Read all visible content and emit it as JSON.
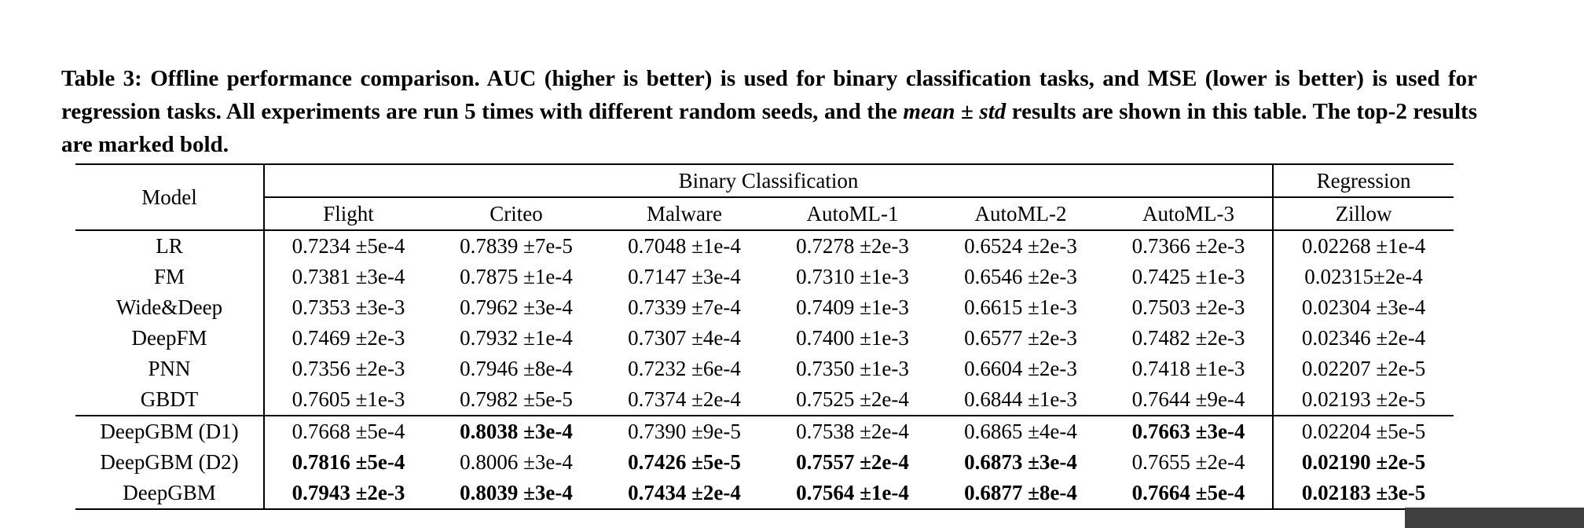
{
  "caption": {
    "prefix": "Table 3: Offline performance comparison. AUC (higher is better) is used for binary classification tasks, and MSE (lower is better) is used for regression tasks. All experiments are run 5 times with different random seeds, and the ",
    "emphasis": "mean ± std",
    "suffix": " results are shown in this table. The top-2 results are marked bold."
  },
  "table": {
    "model_header": "Model",
    "groups": {
      "binary": "Binary Classification",
      "regression": "Regression"
    },
    "columns": [
      "Flight",
      "Criteo",
      "Malware",
      "AutoML-1",
      "AutoML-2",
      "AutoML-3",
      "Zillow"
    ],
    "rows": [
      {
        "model": "LR",
        "values": [
          "0.7234 ±5e-4",
          "0.7839 ±7e-5",
          "0.7048 ±1e-4",
          "0.7278 ±2e-3",
          "0.6524 ±2e-3",
          "0.7366 ±2e-3",
          "0.02268 ±1e-4"
        ],
        "bold": [
          false,
          false,
          false,
          false,
          false,
          false,
          false
        ],
        "section_end": false
      },
      {
        "model": "FM",
        "values": [
          "0.7381 ±3e-4",
          "0.7875 ±1e-4",
          "0.7147 ±3e-4",
          "0.7310 ±1e-3",
          "0.6546 ±2e-3",
          "0.7425 ±1e-3",
          "0.02315±2e-4"
        ],
        "bold": [
          false,
          false,
          false,
          false,
          false,
          false,
          false
        ],
        "section_end": false
      },
      {
        "model": "Wide&Deep",
        "values": [
          "0.7353 ±3e-3",
          "0.7962 ±3e-4",
          "0.7339 ±7e-4",
          "0.7409 ±1e-3",
          "0.6615 ±1e-3",
          "0.7503 ±2e-3",
          "0.02304 ±3e-4"
        ],
        "bold": [
          false,
          false,
          false,
          false,
          false,
          false,
          false
        ],
        "section_end": false
      },
      {
        "model": "DeepFM",
        "values": [
          "0.7469 ±2e-3",
          "0.7932 ±1e-4",
          "0.7307 ±4e-4",
          "0.7400 ±1e-3",
          "0.6577 ±2e-3",
          "0.7482 ±2e-3",
          "0.02346 ±2e-4"
        ],
        "bold": [
          false,
          false,
          false,
          false,
          false,
          false,
          false
        ],
        "section_end": false
      },
      {
        "model": "PNN",
        "values": [
          "0.7356 ±2e-3",
          "0.7946 ±8e-4",
          "0.7232 ±6e-4",
          "0.7350 ±1e-3",
          "0.6604 ±2e-3",
          "0.7418 ±1e-3",
          "0.02207 ±2e-5"
        ],
        "bold": [
          false,
          false,
          false,
          false,
          false,
          false,
          false
        ],
        "section_end": false
      },
      {
        "model": "GBDT",
        "values": [
          "0.7605 ±1e-3",
          "0.7982 ±5e-5",
          "0.7374 ±2e-4",
          "0.7525 ±2e-4",
          "0.6844 ±1e-3",
          "0.7644 ±9e-4",
          "0.02193 ±2e-5"
        ],
        "bold": [
          false,
          false,
          false,
          false,
          false,
          false,
          false
        ],
        "section_end": true
      },
      {
        "model": "DeepGBM (D1)",
        "values": [
          "0.7668 ±5e-4",
          "0.8038 ±3e-4",
          "0.7390 ±9e-5",
          "0.7538 ±2e-4",
          "0.6865 ±4e-4",
          "0.7663 ±3e-4",
          "0.02204 ±5e-5"
        ],
        "bold": [
          false,
          true,
          false,
          false,
          false,
          true,
          false
        ],
        "section_end": false
      },
      {
        "model": "DeepGBM (D2)",
        "values": [
          "0.7816 ±5e-4",
          "0.8006 ±3e-4",
          "0.7426 ±5e-5",
          "0.7557 ±2e-4",
          "0.6873 ±3e-4",
          "0.7655 ±2e-4",
          "0.02190 ±2e-5"
        ],
        "bold": [
          true,
          false,
          true,
          true,
          true,
          false,
          true
        ],
        "section_end": false
      },
      {
        "model": "DeepGBM",
        "values": [
          "0.7943 ±2e-3",
          "0.8039 ±3e-4",
          "0.7434 ±2e-4",
          "0.7564 ±1e-4",
          "0.6877 ±8e-4",
          "0.7664 ±5e-4",
          "0.02183 ±3e-5"
        ],
        "bold": [
          true,
          true,
          true,
          true,
          true,
          true,
          true
        ],
        "section_end": false
      }
    ]
  }
}
